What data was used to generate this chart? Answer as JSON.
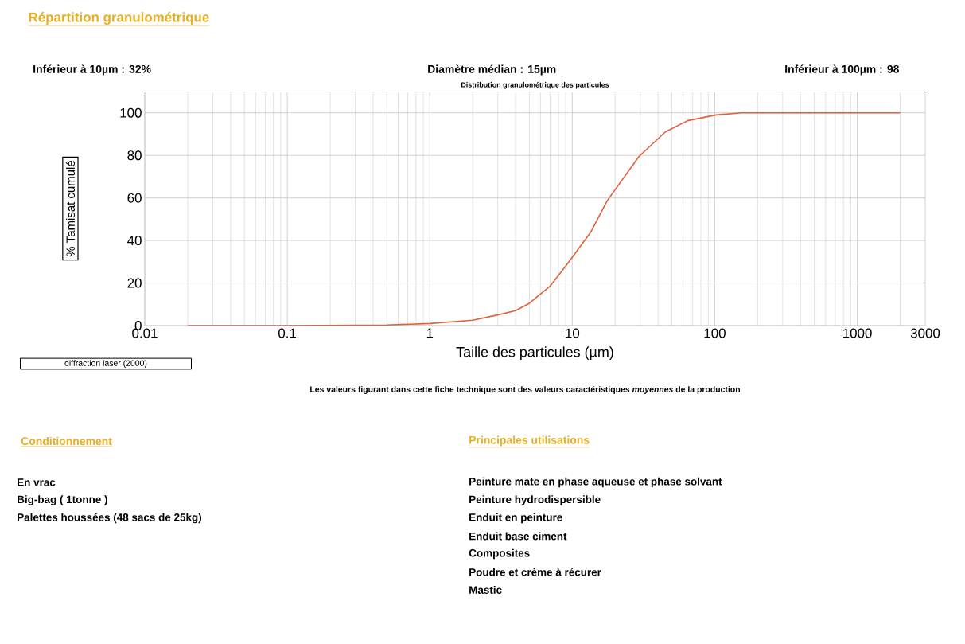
{
  "chart_data": {
    "type": "line",
    "title": "Répartition granulométrique",
    "subtitle": "Distribution granulométrique des particules",
    "xlabel": "Taille des particules (µm)",
    "ylabel": "% Tamisat cumulé",
    "log": "x",
    "grid": true,
    "xlim": [
      0.01,
      3000
    ],
    "ylim": [
      0,
      110
    ],
    "xticks": [
      0.01,
      0.1,
      1,
      10,
      100,
      1000,
      3000
    ],
    "yticks": [
      0,
      20,
      40,
      60,
      80,
      100
    ],
    "series": [
      {
        "color": "#e0603c",
        "x": [
          0.02,
          0.1,
          0.5,
          1,
          2,
          3,
          4,
          5,
          7,
          9,
          13.5,
          17.6,
          29.4,
          45,
          64.5,
          102,
          155,
          2000
        ],
        "values": [
          0,
          0,
          0.3,
          1,
          2.5,
          5,
          7,
          10.5,
          18.6,
          28,
          44,
          58.7,
          79.5,
          91,
          96.3,
          99,
          100,
          100
        ]
      }
    ],
    "annotations": [
      "Inférieur à  10µm : 32%",
      "Diamètre médian :  15µm",
      "Inférieur à 100µm : 98",
      "diffraction laser (2000)",
      "Les valeurs figurant dans cette fiche technique sont des valeurs caractéristiques *moyennes* de la production",
      "Conditionnement",
      "En vrac",
      "Big-bag ( 1tonne )",
      "Palettes houssées (48 sacs de 25kg)",
      "Principales utilisations",
      "Peinture mate en phase aqueuse et phase solvant",
      "Peinture hydrodispersible",
      "Enduit en peinture",
      "Enduit base ciment",
      "Composites",
      "Poudre et crème à récurer",
      "Mastic"
    ]
  }
}
